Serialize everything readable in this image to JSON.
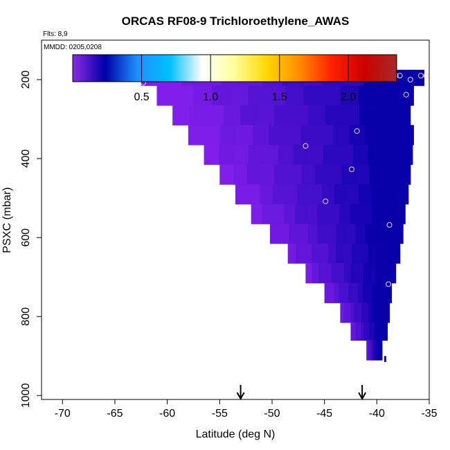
{
  "chart_data": {
    "type": "heatmap",
    "title": "ORCAS RF08-9 Trichloroethylene_AWAS",
    "flights_note": "Flts: 8,9",
    "dates_note": "MMDD: 0205,0208",
    "xlabel": "Latitude (deg N)",
    "ylabel": "PSXC (mbar)",
    "xlim": [
      -72,
      -35
    ],
    "ylim": [
      1010,
      100
    ],
    "x_ticks": [
      -70,
      -65,
      -60,
      -55,
      -50,
      -45,
      -40,
      -35
    ],
    "y_ticks": [
      200,
      400,
      600,
      800,
      1000
    ],
    "colorbar": {
      "range": [
        0.0,
        2.35
      ],
      "ticks": [
        0.5,
        1.0,
        1.5,
        2.0
      ],
      "tick_labels": [
        "0.5",
        "1.0",
        "1.5",
        "2.0"
      ],
      "colors": [
        "#8a2be2",
        "#0000a8",
        "#1e90ff",
        "#00bfff",
        "#ffffff",
        "#ffff99",
        "#ffd700",
        "#ff8c00",
        "#ff2000",
        "#cc0000",
        "#a52a2a"
      ]
    },
    "curtain": {
      "description_levels": [
        {
          "p": 190,
          "lat_start": -62.5,
          "lat_end": -35.5
        },
        {
          "p": 240,
          "lat_start": -61.0,
          "lat_end": -36.5
        },
        {
          "p": 290,
          "lat_start": -59.5,
          "lat_end": -36.8
        },
        {
          "p": 340,
          "lat_start": -58.0,
          "lat_end": -36.5
        },
        {
          "p": 390,
          "lat_start": -56.5,
          "lat_end": -36.6
        },
        {
          "p": 440,
          "lat_start": -55.0,
          "lat_end": -36.8
        },
        {
          "p": 490,
          "lat_start": -53.5,
          "lat_end": -37.0
        },
        {
          "p": 540,
          "lat_start": -52.0,
          "lat_end": -37.3
        },
        {
          "p": 590,
          "lat_start": -50.2,
          "lat_end": -37.5
        },
        {
          "p": 640,
          "lat_start": -48.5,
          "lat_end": -37.8
        },
        {
          "p": 690,
          "lat_start": -46.8,
          "lat_end": -38.2
        },
        {
          "p": 740,
          "lat_start": -45.0,
          "lat_end": -38.6
        },
        {
          "p": 790,
          "lat_start": -43.5,
          "lat_end": -38.8
        },
        {
          "p": 840,
          "lat_start": -42.5,
          "lat_end": -39.0
        },
        {
          "p": 880,
          "lat_start": -41.0,
          "lat_end": -39.5
        }
      ]
    },
    "samples": [
      {
        "lat": -62.3,
        "p": 208
      },
      {
        "lat": -38.2,
        "p": 190
      },
      {
        "lat": -37.8,
        "p": 190
      },
      {
        "lat": -36.8,
        "p": 200
      },
      {
        "lat": -35.8,
        "p": 190
      },
      {
        "lat": -35.3,
        "p": 190
      },
      {
        "lat": -37.2,
        "p": 238
      },
      {
        "lat": -41.9,
        "p": 330
      },
      {
        "lat": -46.8,
        "p": 368
      },
      {
        "lat": -42.4,
        "p": 427
      },
      {
        "lat": -44.9,
        "p": 508
      },
      {
        "lat": -38.8,
        "p": 568
      },
      {
        "lat": -38.9,
        "p": 718
      }
    ],
    "arrows_lat": [
      -53.0,
      -41.4
    ]
  }
}
